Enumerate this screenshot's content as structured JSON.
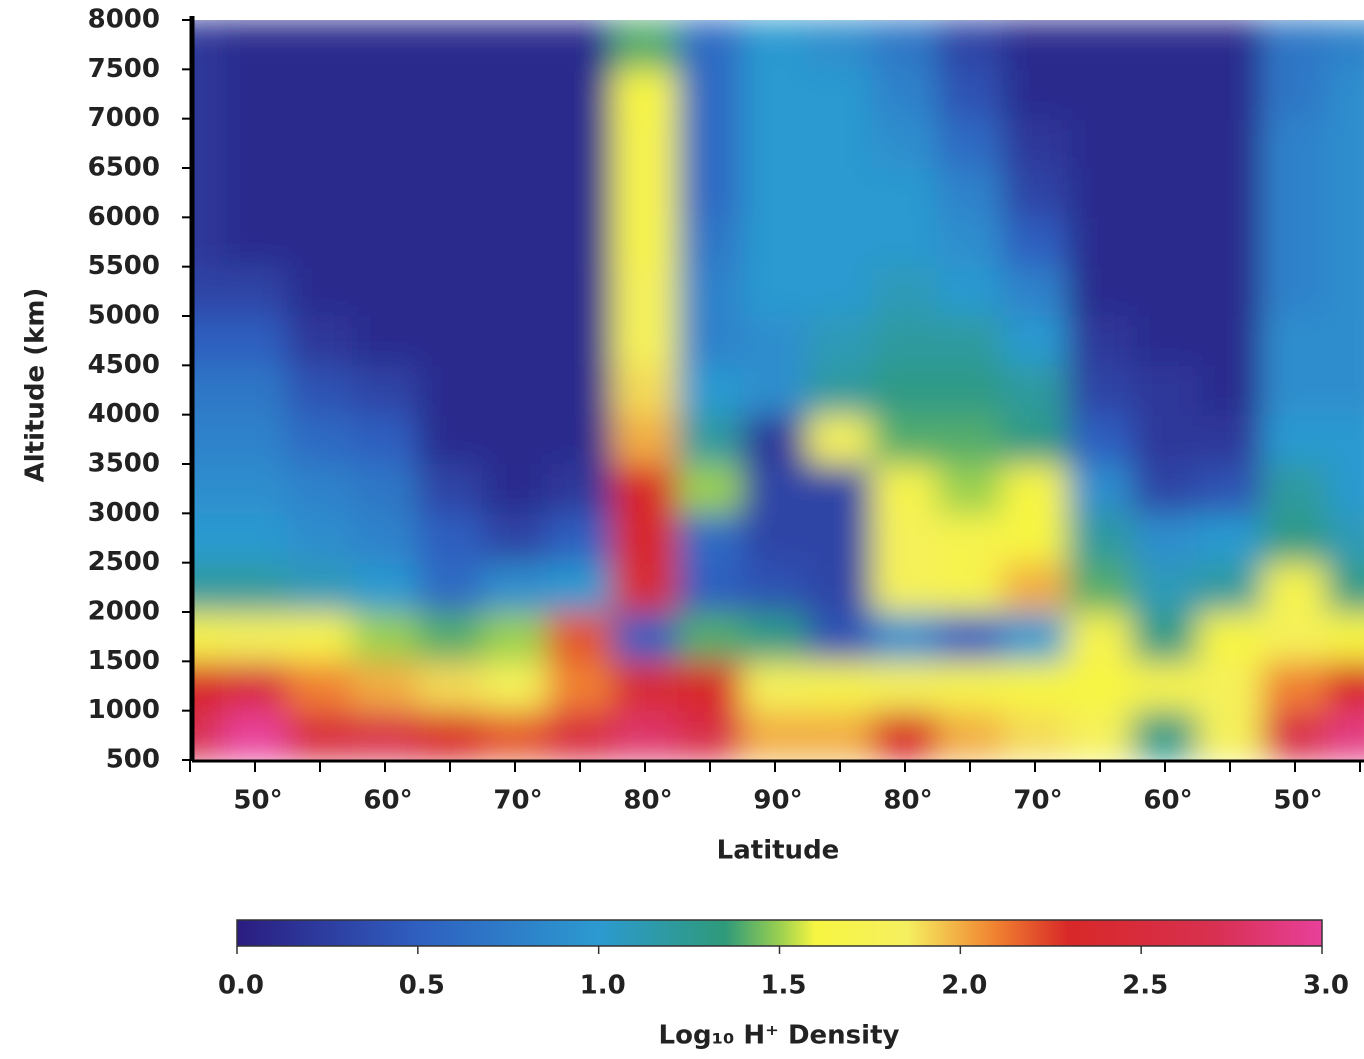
{
  "chart_data": {
    "type": "heatmap",
    "x_label": "Latitude",
    "y_label": "Altitude (km)",
    "categories": [
      null,
      "50°",
      null,
      "60°",
      null,
      "70°",
      null,
      "80°",
      null,
      "90°",
      null,
      "80°",
      null,
      "70°",
      null,
      "60°",
      null,
      "50°",
      null
    ],
    "y": [
      750,
      1250,
      1750,
      2250,
      2750,
      3250,
      3750,
      4250,
      4750,
      5250,
      5750,
      6250,
      6750,
      7250,
      7750
    ],
    "ylim": [
      500,
      8000
    ],
    "yticks": [
      500,
      1000,
      1500,
      2000,
      2500,
      3000,
      3500,
      4000,
      4500,
      5000,
      5500,
      6000,
      6500,
      7000,
      7500,
      8000
    ],
    "values": [
      [
        2.7,
        3.0,
        2.5,
        2.6,
        2.3,
        2.2,
        2.5,
        2.8,
        2.6,
        2.0,
        2.0,
        2.3,
        2.0,
        1.9,
        1.8,
        1.3,
        1.8,
        2.6,
        2.9
      ],
      [
        2.3,
        2.5,
        2.1,
        2.0,
        1.9,
        1.8,
        2.1,
        2.4,
        2.3,
        1.8,
        1.7,
        1.8,
        1.7,
        1.6,
        1.6,
        1.7,
        1.8,
        2.1,
        2.3
      ],
      [
        1.7,
        1.8,
        1.7,
        1.5,
        1.4,
        1.5,
        2.2,
        0.5,
        1.4,
        1.3,
        0.4,
        0.9,
        0.5,
        1.0,
        1.7,
        1.3,
        1.6,
        1.8,
        1.6
      ],
      [
        1.2,
        1.2,
        1.1,
        1.0,
        0.6,
        0.9,
        1.0,
        2.4,
        0.5,
        0.4,
        0.3,
        1.8,
        1.7,
        2.0,
        1.4,
        1.1,
        1.2,
        1.7,
        1.3
      ],
      [
        1.0,
        1.0,
        0.9,
        0.8,
        0.5,
        0.3,
        0.5,
        2.3,
        0.6,
        0.3,
        0.3,
        1.8,
        1.7,
        1.6,
        1.2,
        0.9,
        1.0,
        1.3,
        1.1
      ],
      [
        0.9,
        0.9,
        0.8,
        0.7,
        0.3,
        0.1,
        0.2,
        2.3,
        1.5,
        0.3,
        0.3,
        1.7,
        1.5,
        1.6,
        0.9,
        0.3,
        0.4,
        1.2,
        1.0
      ],
      [
        0.8,
        0.8,
        0.6,
        0.5,
        0.1,
        0.1,
        0.1,
        2.0,
        1.2,
        0.2,
        1.8,
        1.4,
        1.4,
        1.3,
        0.5,
        0.2,
        0.2,
        1.0,
        1.0
      ],
      [
        0.7,
        0.7,
        0.4,
        0.3,
        0.1,
        0.1,
        0.1,
        1.9,
        1.0,
        0.9,
        1.2,
        1.3,
        1.3,
        1.2,
        0.3,
        0.2,
        0.1,
        0.9,
        0.9
      ],
      [
        0.5,
        0.5,
        0.2,
        0.1,
        0.1,
        0.1,
        0.1,
        1.8,
        0.8,
        0.9,
        1.1,
        1.2,
        1.2,
        1.0,
        0.2,
        0.1,
        0.1,
        0.9,
        0.9
      ],
      [
        0.3,
        0.3,
        0.1,
        0.1,
        0.1,
        0.1,
        0.1,
        1.8,
        0.8,
        1.0,
        1.0,
        1.1,
        1.0,
        0.8,
        0.1,
        0.1,
        0.1,
        0.8,
        0.9
      ],
      [
        0.2,
        0.1,
        0.1,
        0.1,
        0.1,
        0.1,
        0.1,
        1.7,
        0.7,
        1.0,
        1.0,
        1.0,
        0.9,
        0.5,
        0.1,
        0.1,
        0.1,
        0.8,
        0.9
      ],
      [
        0.2,
        0.1,
        0.1,
        0.1,
        0.1,
        0.1,
        0.1,
        1.7,
        0.6,
        1.0,
        1.0,
        1.0,
        0.8,
        0.3,
        0.1,
        0.1,
        0.1,
        0.8,
        0.9
      ],
      [
        0.2,
        0.1,
        0.1,
        0.1,
        0.1,
        0.1,
        0.1,
        1.7,
        0.6,
        1.0,
        1.0,
        0.9,
        0.6,
        0.2,
        0.1,
        0.1,
        0.1,
        0.8,
        0.9
      ],
      [
        0.2,
        0.1,
        0.1,
        0.1,
        0.1,
        0.1,
        0.1,
        1.6,
        0.6,
        1.0,
        1.0,
        0.8,
        0.4,
        0.1,
        0.1,
        0.1,
        0.1,
        0.7,
        0.9
      ],
      [
        0.2,
        0.1,
        0.1,
        0.1,
        0.1,
        0.1,
        0.1,
        1.4,
        0.6,
        1.0,
        0.9,
        0.7,
        0.3,
        0.1,
        0.1,
        0.1,
        0.1,
        0.7,
        0.8
      ]
    ],
    "zlabel": "Log₁₀ H⁺ Density",
    "zlim": [
      0,
      3
    ],
    "zticks": [
      {
        "value": 0,
        "label": "0.0"
      },
      {
        "value": 0.5,
        "label": "0.5"
      },
      {
        "value": 1,
        "label": "1.0"
      },
      {
        "value": 1.5,
        "label": "1.5"
      },
      {
        "value": 2,
        "label": "2.0"
      },
      {
        "value": 2.5,
        "label": "2.5"
      },
      {
        "value": 3,
        "label": "3.0"
      }
    ],
    "colorscale": [
      [
        0,
        "#2b1c80"
      ],
      [
        0.5,
        "#2f5fc0"
      ],
      [
        1.0,
        "#2c9ad0"
      ],
      [
        1.35,
        "#2f9a7a"
      ],
      [
        1.5,
        "#9ad050"
      ],
      [
        1.6,
        "#f7f542"
      ],
      [
        1.85,
        "#f5f060"
      ],
      [
        2.1,
        "#f08030"
      ],
      [
        2.3,
        "#d82828"
      ],
      [
        2.7,
        "#d83050"
      ],
      [
        3.0,
        "#e8409a"
      ]
    ]
  }
}
